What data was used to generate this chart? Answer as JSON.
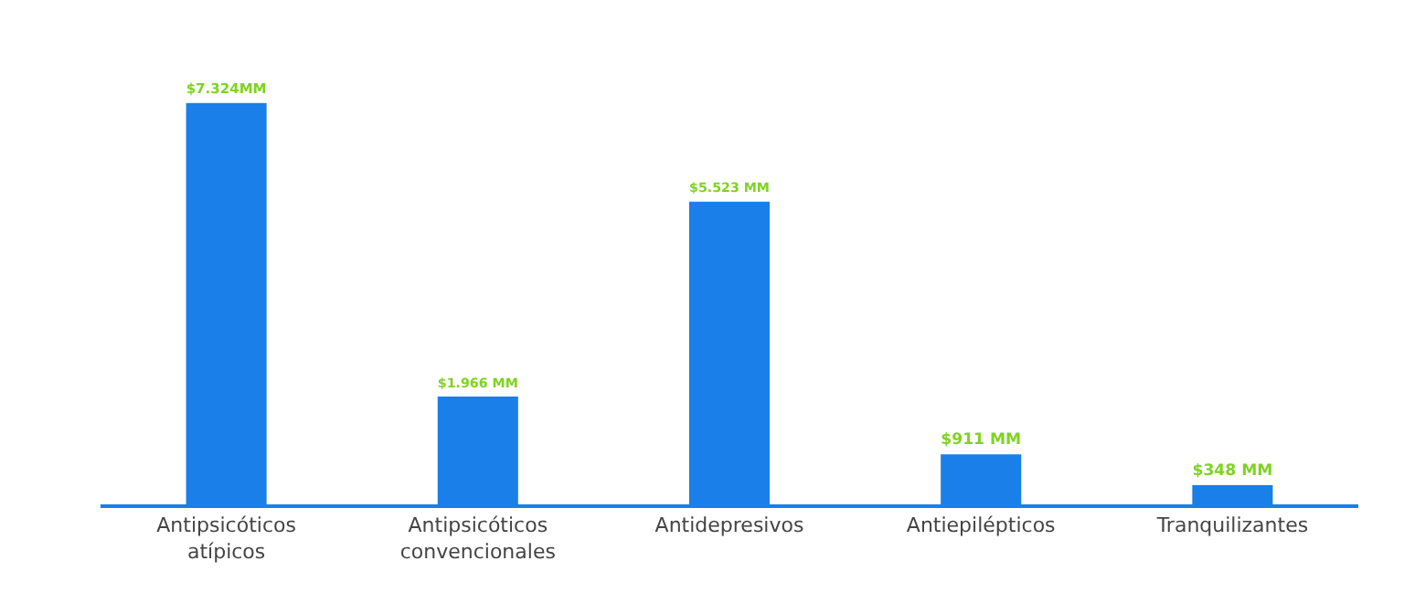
{
  "chart_data": {
    "type": "bar",
    "categories": [
      "Antipsicóticos atípicos",
      "Antipsicóticos convencionales",
      "Antidepresivos",
      "Antiepilépticos",
      "Tranquilizantes"
    ],
    "values": [
      7324,
      1966,
      5523,
      911,
      348
    ],
    "value_labels": [
      "$7.324MM",
      "$1.966 MM",
      "$5.523 MM",
      "$911 MM",
      "$348 MM"
    ],
    "color": "#1a7fe8",
    "grid": false,
    "legend": false
  }
}
